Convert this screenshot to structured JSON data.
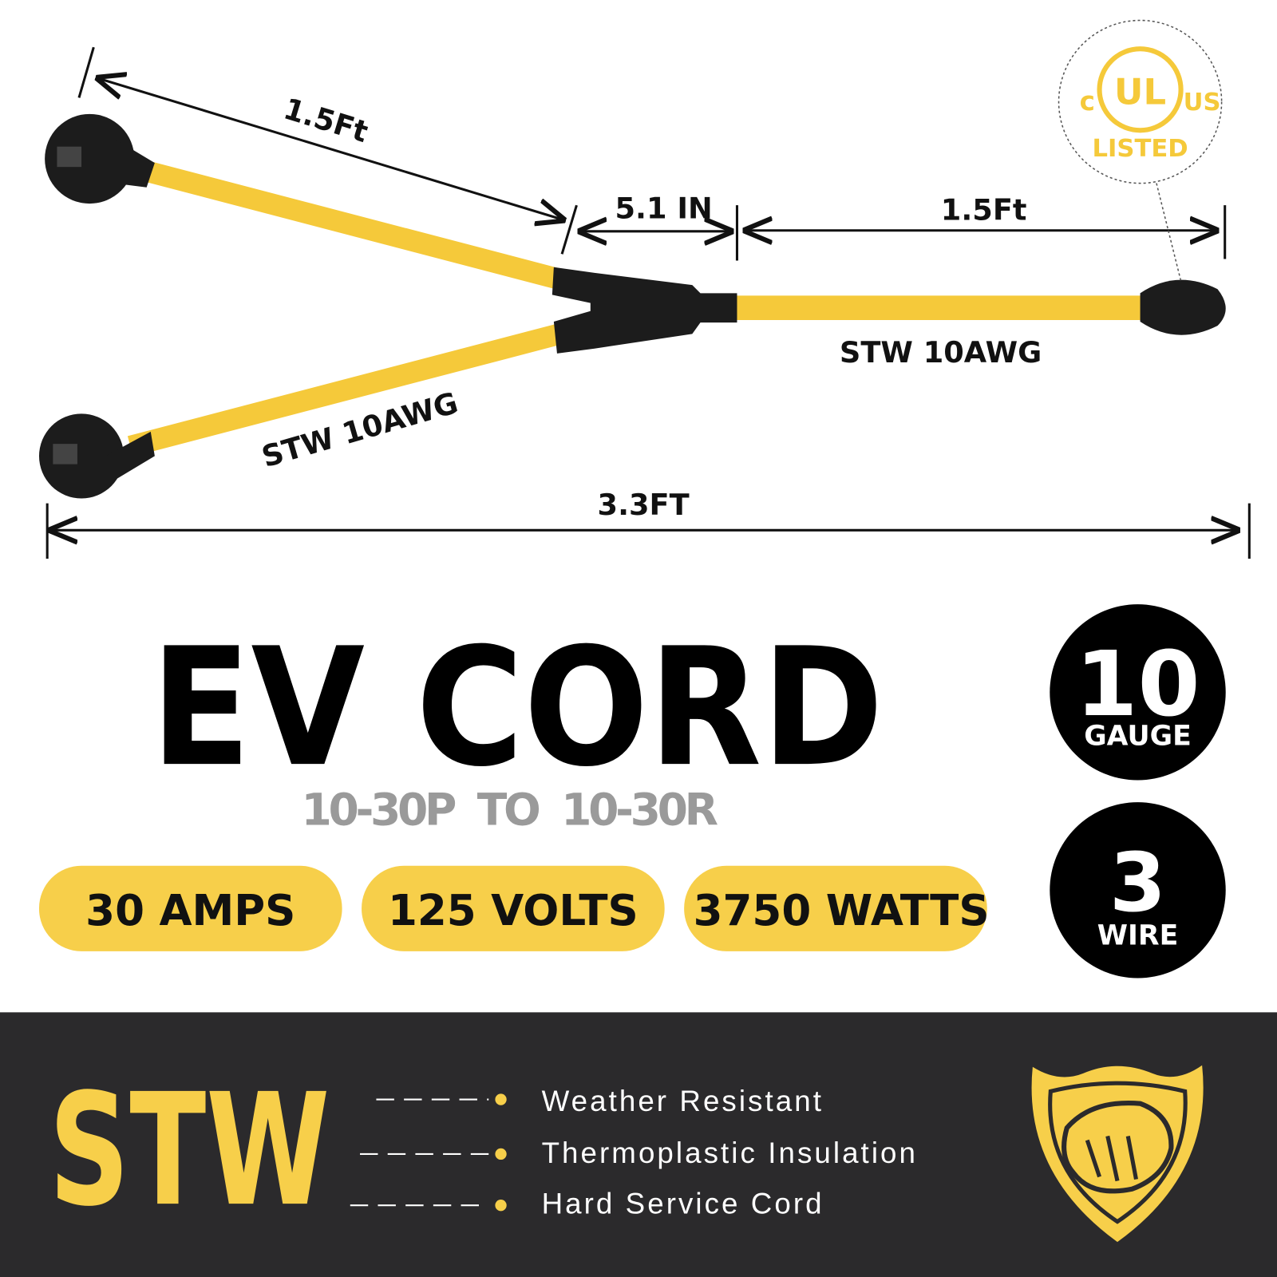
{
  "diagram": {
    "dimensions": {
      "left_branch": "1.5Ft",
      "junction": "5.1 IN",
      "right_cord": "1.5Ft",
      "total": "3.3FT"
    },
    "cable_labels": [
      "STW 10AWG",
      "STW 10AWG"
    ],
    "certification": {
      "left": "c",
      "mark": "UL",
      "right": "US",
      "status": "LISTED"
    }
  },
  "title": "EV CORD",
  "subtitle": "10-30P  TO  10-30R",
  "ratings": [
    "30 AMPS",
    "125 VOLTS",
    "3750 WATTS"
  ],
  "badges": [
    {
      "number": "10",
      "label": "GAUGE"
    },
    {
      "number": "3",
      "label": "WIRE"
    }
  ],
  "footer": {
    "title": "STW",
    "features": [
      "Weather Resistant",
      "Thermoplastic Insulation",
      "Hard Service Cord"
    ]
  }
}
